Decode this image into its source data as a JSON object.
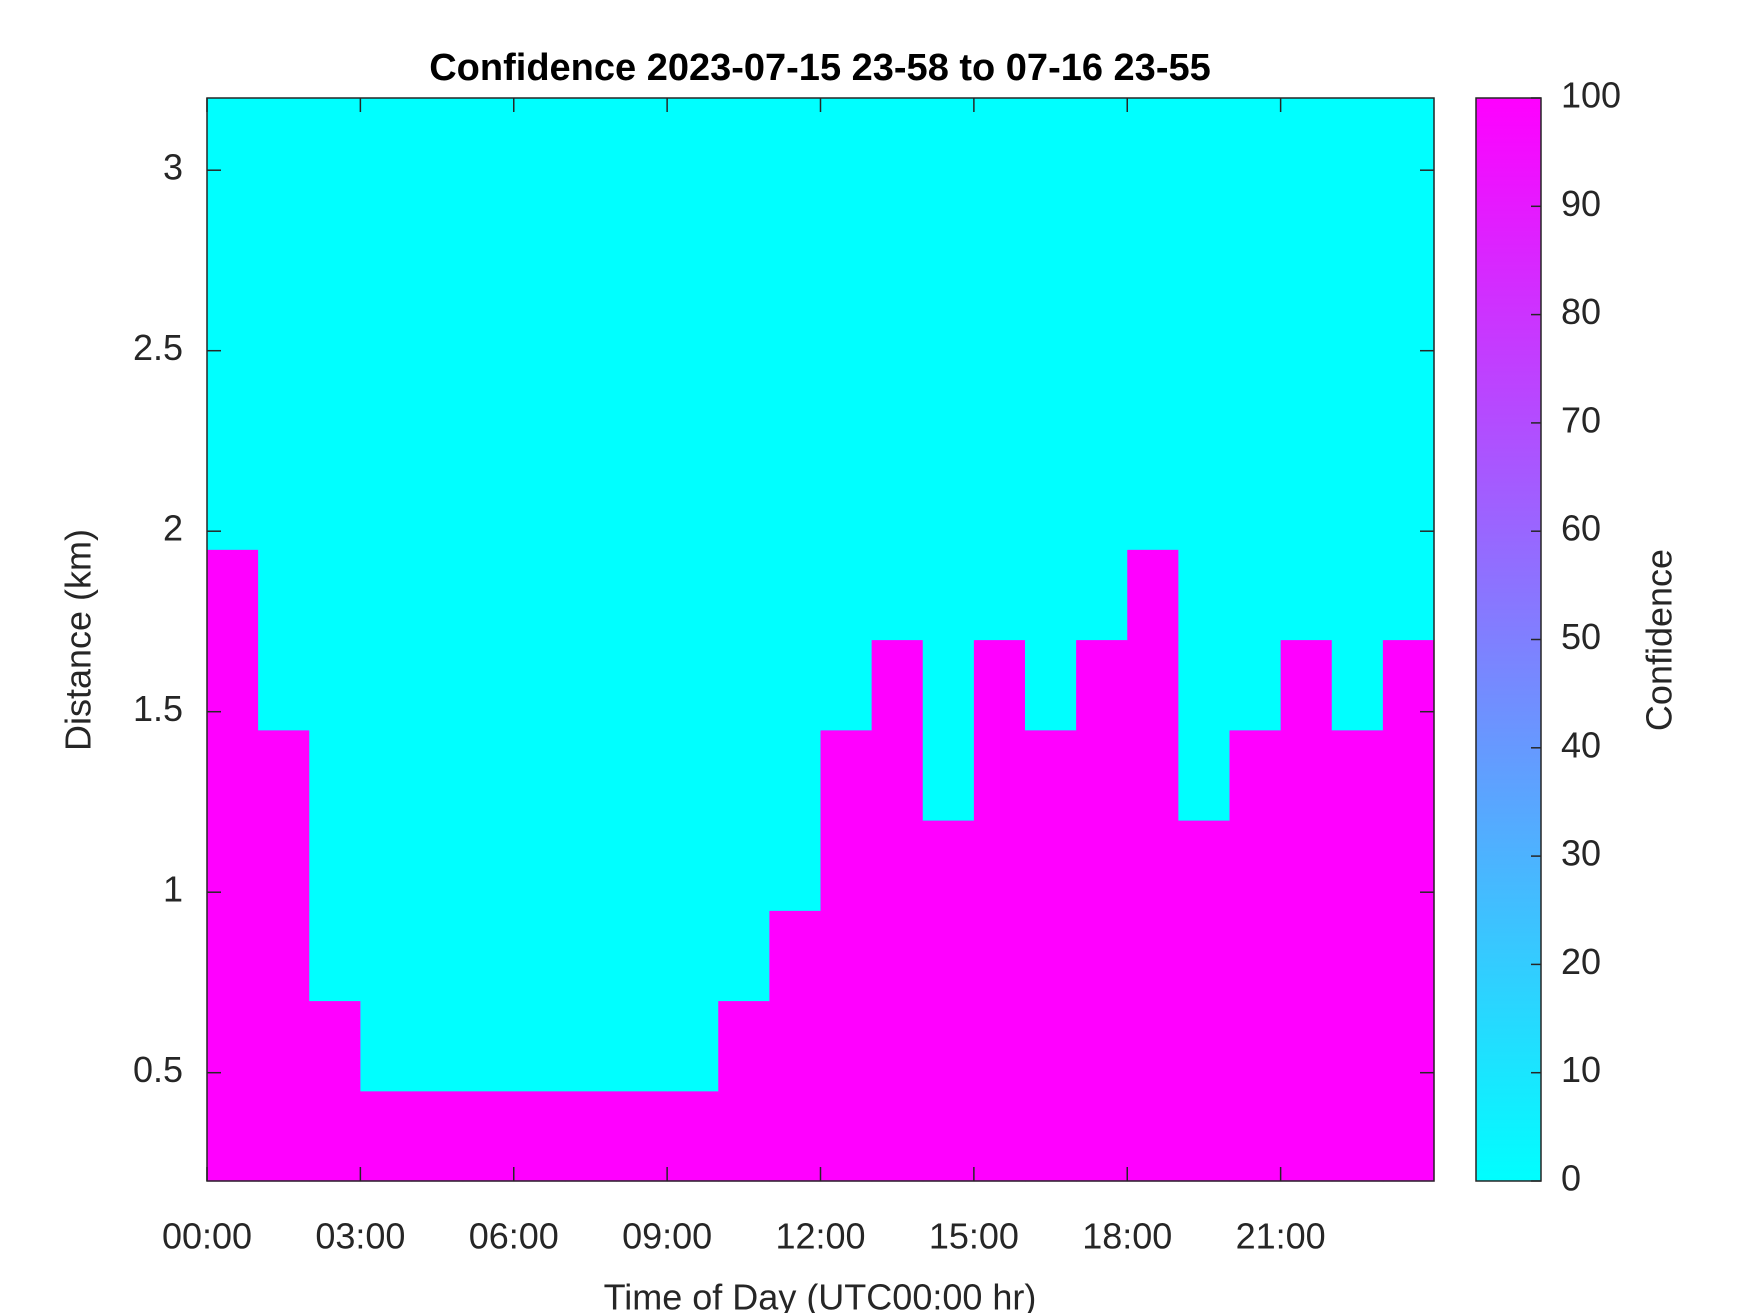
{
  "chart_data": {
    "type": "heatmap",
    "title": "Confidence 2023-07-15 23-58 to 07-16 23-55",
    "xlabel": "Time of Day (UTC00:00 hr)",
    "ylabel": "Distance (km)",
    "colorbar_label": "Confidence",
    "colormap": "cool",
    "xbins": [
      0,
      1,
      2,
      3,
      4,
      5,
      6,
      7,
      8,
      9,
      10,
      11,
      12,
      13,
      14,
      15,
      16,
      17,
      18,
      19,
      20,
      21,
      22,
      23,
      24
    ],
    "ybins": [
      0.2,
      0.45,
      0.7,
      0.95,
      1.2,
      1.45,
      1.7,
      1.95,
      2.2,
      2.45,
      2.7,
      2.95,
      3.2
    ],
    "z": [
      [
        100,
        100,
        100,
        100,
        100,
        100,
        100,
        100,
        100,
        100,
        100,
        100,
        100,
        100,
        100,
        100,
        100,
        100,
        100,
        100,
        100,
        100,
        100,
        100
      ],
      [
        100,
        100,
        100,
        0,
        0,
        0,
        0,
        0,
        0,
        0,
        100,
        100,
        100,
        100,
        100,
        100,
        100,
        100,
        100,
        100,
        100,
        100,
        100,
        100
      ],
      [
        100,
        100,
        0,
        0,
        0,
        0,
        0,
        0,
        0,
        0,
        0,
        100,
        100,
        100,
        100,
        100,
        100,
        100,
        100,
        100,
        100,
        100,
        100,
        100
      ],
      [
        100,
        100,
        0,
        0,
        0,
        0,
        0,
        0,
        0,
        0,
        0,
        0,
        100,
        100,
        100,
        100,
        100,
        100,
        100,
        100,
        100,
        100,
        100,
        100
      ],
      [
        100,
        100,
        0,
        0,
        0,
        0,
        0,
        0,
        0,
        0,
        0,
        0,
        100,
        100,
        0,
        100,
        100,
        100,
        100,
        0,
        100,
        100,
        100,
        100
      ],
      [
        100,
        0,
        0,
        0,
        0,
        0,
        0,
        0,
        0,
        0,
        0,
        0,
        0,
        100,
        0,
        100,
        0,
        100,
        100,
        0,
        0,
        100,
        0,
        100
      ],
      [
        100,
        0,
        0,
        0,
        0,
        0,
        0,
        0,
        0,
        0,
        0,
        0,
        0,
        0,
        0,
        0,
        0,
        0,
        100,
        0,
        0,
        0,
        0,
        0
      ],
      [
        0,
        0,
        0,
        0,
        0,
        0,
        0,
        0,
        0,
        0,
        0,
        0,
        0,
        0,
        0,
        0,
        0,
        0,
        0,
        0,
        0,
        0,
        0,
        0
      ],
      [
        0,
        0,
        0,
        0,
        0,
        0,
        0,
        0,
        0,
        0,
        0,
        0,
        0,
        0,
        0,
        0,
        0,
        0,
        0,
        0,
        0,
        0,
        0,
        0
      ],
      [
        0,
        0,
        0,
        0,
        0,
        0,
        0,
        0,
        0,
        0,
        0,
        0,
        0,
        0,
        0,
        0,
        0,
        0,
        0,
        0,
        0,
        0,
        0,
        0
      ],
      [
        0,
        0,
        0,
        0,
        0,
        0,
        0,
        0,
        0,
        0,
        0,
        0,
        0,
        0,
        0,
        0,
        0,
        0,
        0,
        0,
        0,
        0,
        0,
        0
      ],
      [
        0,
        0,
        0,
        0,
        0,
        0,
        0,
        0,
        0,
        0,
        0,
        0,
        0,
        0,
        0,
        0,
        0,
        0,
        0,
        0,
        0,
        0,
        0,
        0
      ]
    ],
    "xlim": [
      0,
      24
    ],
    "xticks": [
      {
        "value": 0,
        "label": "00:00"
      },
      {
        "value": 3,
        "label": "03:00"
      },
      {
        "value": 6,
        "label": "06:00"
      },
      {
        "value": 9,
        "label": "09:00"
      },
      {
        "value": 12,
        "label": "12:00"
      },
      {
        "value": 15,
        "label": "15:00"
      },
      {
        "value": 18,
        "label": "18:00"
      },
      {
        "value": 21,
        "label": "21:00"
      }
    ],
    "ylim": [
      0.2,
      3.2
    ],
    "yticks": [
      0.5,
      1,
      1.5,
      2,
      2.5,
      3
    ],
    "clim": [
      0,
      100
    ],
    "cticks": [
      0,
      10,
      20,
      30,
      40,
      50,
      60,
      70,
      80,
      90,
      100
    ]
  }
}
